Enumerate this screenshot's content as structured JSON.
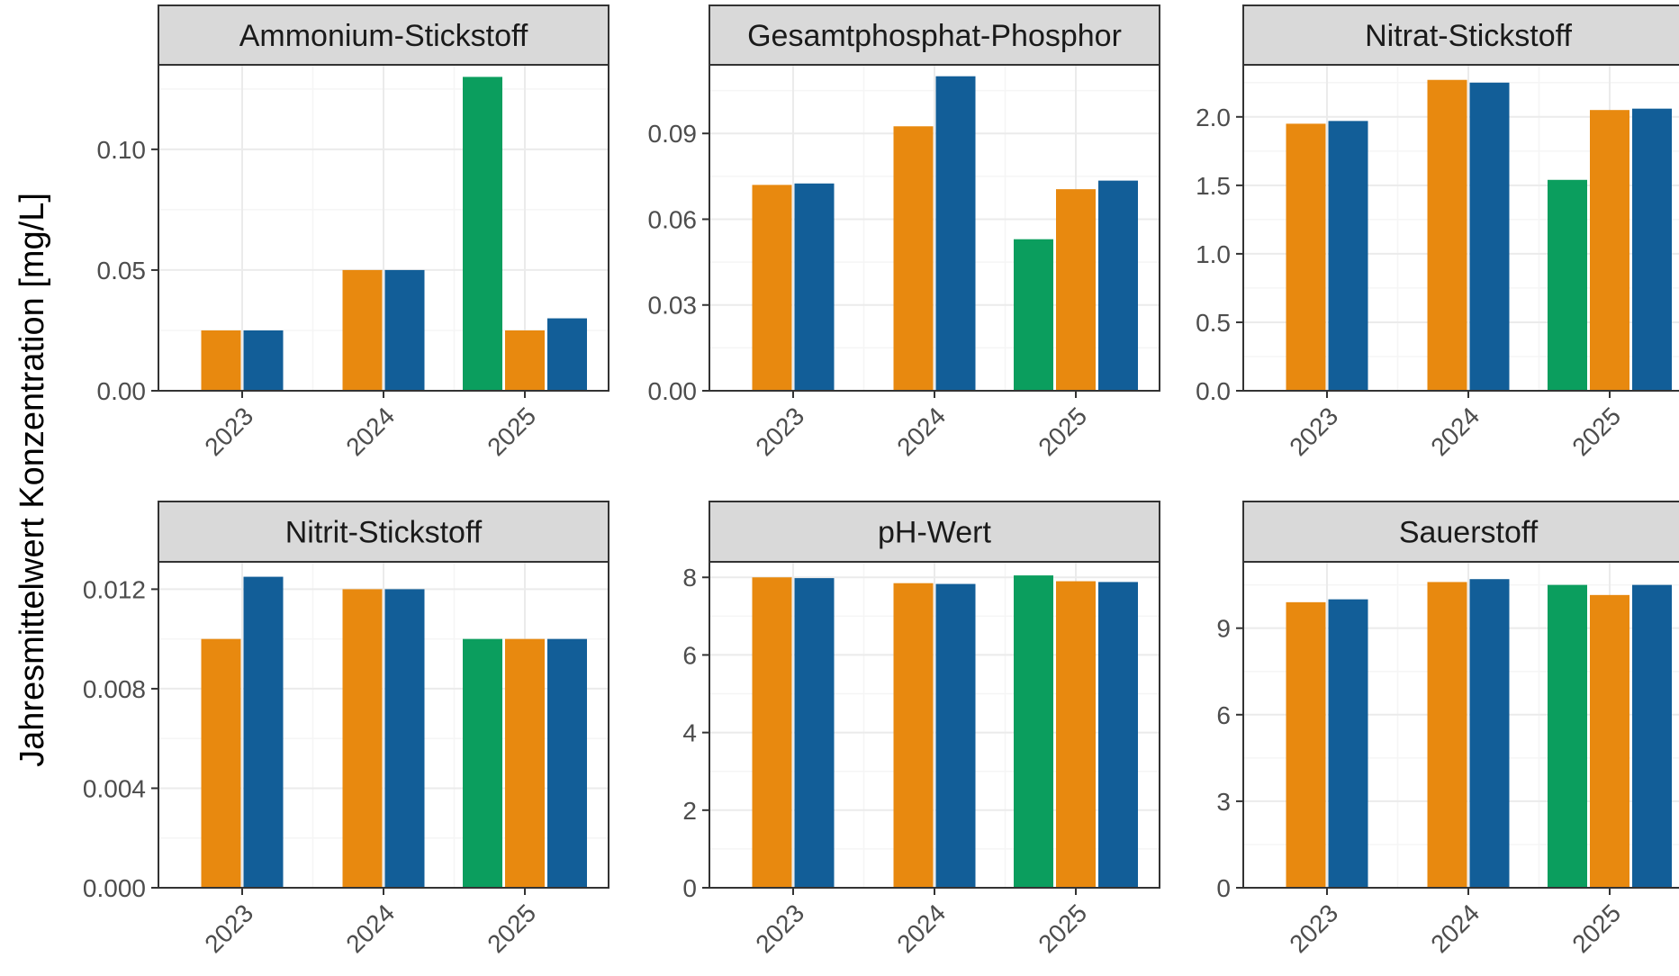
{
  "chart_data": {
    "type": "bar",
    "ylabel": "Jahresmittelwert Konzentration [mg/L]",
    "xlabel": "",
    "legend": "none",
    "grid": true,
    "colors": {
      "green": "#0b9e5e",
      "orange": "#e8890f",
      "blue": "#125e98"
    },
    "panels": [
      {
        "title": "Ammonium-Stickstoff",
        "ylim": [
          0,
          0.135
        ],
        "yticks": [
          0.0,
          0.05,
          0.1
        ],
        "ytick_labels": [
          "0.00",
          "0.05",
          "0.10"
        ],
        "groups": [
          {
            "x": "2023",
            "bars": [
              {
                "color": "orange",
                "value": 0.025
              },
              {
                "color": "blue",
                "value": 0.025
              }
            ]
          },
          {
            "x": "2024",
            "bars": [
              {
                "color": "orange",
                "value": 0.05
              },
              {
                "color": "blue",
                "value": 0.05
              }
            ]
          },
          {
            "x": "2025",
            "bars": [
              {
                "color": "green",
                "value": 0.13
              },
              {
                "color": "orange",
                "value": 0.025
              },
              {
                "color": "blue",
                "value": 0.03
              }
            ]
          }
        ]
      },
      {
        "title": "Gesamtphosphat-Phosphor",
        "ylim": [
          0,
          0.114
        ],
        "yticks": [
          0.0,
          0.03,
          0.06,
          0.09
        ],
        "ytick_labels": [
          "0.00",
          "0.03",
          "0.06",
          "0.09"
        ],
        "groups": [
          {
            "x": "2023",
            "bars": [
              {
                "color": "orange",
                "value": 0.072
              },
              {
                "color": "blue",
                "value": 0.0725
              }
            ]
          },
          {
            "x": "2024",
            "bars": [
              {
                "color": "orange",
                "value": 0.0925
              },
              {
                "color": "blue",
                "value": 0.11
              }
            ]
          },
          {
            "x": "2025",
            "bars": [
              {
                "color": "green",
                "value": 0.053
              },
              {
                "color": "orange",
                "value": 0.0705
              },
              {
                "color": "blue",
                "value": 0.0735
              }
            ]
          }
        ]
      },
      {
        "title": "Nitrat-Stickstoff",
        "ylim": [
          0,
          2.38
        ],
        "yticks": [
          0.0,
          0.5,
          1.0,
          1.5,
          2.0
        ],
        "ytick_labels": [
          "0.0",
          "0.5",
          "1.0",
          "1.5",
          "2.0"
        ],
        "groups": [
          {
            "x": "2023",
            "bars": [
              {
                "color": "orange",
                "value": 1.95
              },
              {
                "color": "blue",
                "value": 1.97
              }
            ]
          },
          {
            "x": "2024",
            "bars": [
              {
                "color": "orange",
                "value": 2.27
              },
              {
                "color": "blue",
                "value": 2.25
              }
            ]
          },
          {
            "x": "2025",
            "bars": [
              {
                "color": "green",
                "value": 1.54
              },
              {
                "color": "orange",
                "value": 2.05
              },
              {
                "color": "blue",
                "value": 2.06
              }
            ]
          }
        ]
      },
      {
        "title": "Nitrit-Stickstoff",
        "ylim": [
          0,
          0.0131
        ],
        "yticks": [
          0.0,
          0.004,
          0.008,
          0.012
        ],
        "ytick_labels": [
          "0.000",
          "0.004",
          "0.008",
          "0.012"
        ],
        "groups": [
          {
            "x": "2023",
            "bars": [
              {
                "color": "orange",
                "value": 0.01
              },
              {
                "color": "blue",
                "value": 0.0125
              }
            ]
          },
          {
            "x": "2024",
            "bars": [
              {
                "color": "orange",
                "value": 0.012
              },
              {
                "color": "blue",
                "value": 0.012
              }
            ]
          },
          {
            "x": "2025",
            "bars": [
              {
                "color": "green",
                "value": 0.01
              },
              {
                "color": "orange",
                "value": 0.01
              },
              {
                "color": "blue",
                "value": 0.01
              }
            ]
          }
        ]
      },
      {
        "title": "pH-Wert",
        "ylim": [
          0,
          8.4
        ],
        "yticks": [
          0,
          2,
          4,
          6,
          8
        ],
        "ytick_labels": [
          "0",
          "2",
          "4",
          "6",
          "8"
        ],
        "groups": [
          {
            "x": "2023",
            "bars": [
              {
                "color": "orange",
                "value": 8.0
              },
              {
                "color": "blue",
                "value": 7.98
              }
            ]
          },
          {
            "x": "2024",
            "bars": [
              {
                "color": "orange",
                "value": 7.85
              },
              {
                "color": "blue",
                "value": 7.83
              }
            ]
          },
          {
            "x": "2025",
            "bars": [
              {
                "color": "green",
                "value": 8.05
              },
              {
                "color": "orange",
                "value": 7.9
              },
              {
                "color": "blue",
                "value": 7.88
              }
            ]
          }
        ]
      },
      {
        "title": "Sauerstoff",
        "ylim": [
          0,
          11.3
        ],
        "yticks": [
          0,
          3,
          6,
          9
        ],
        "ytick_labels": [
          "0",
          "3",
          "6",
          "9"
        ],
        "groups": [
          {
            "x": "2023",
            "bars": [
              {
                "color": "orange",
                "value": 9.9
              },
              {
                "color": "blue",
                "value": 10.0
              }
            ]
          },
          {
            "x": "2024",
            "bars": [
              {
                "color": "orange",
                "value": 10.6
              },
              {
                "color": "blue",
                "value": 10.7
              }
            ]
          },
          {
            "x": "2025",
            "bars": [
              {
                "color": "green",
                "value": 10.5
              },
              {
                "color": "orange",
                "value": 10.15
              },
              {
                "color": "blue",
                "value": 10.5
              }
            ]
          }
        ]
      }
    ]
  }
}
